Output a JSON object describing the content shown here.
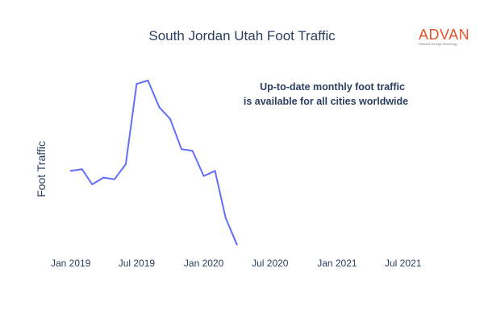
{
  "brand": {
    "name": "ADVAN",
    "tagline": "Research through Technology",
    "color": "#e8542a"
  },
  "annotation": {
    "line1": "Up-to-date monthly foot traffic",
    "line2": "is available for all cities worldwide"
  },
  "chart_data": {
    "type": "line",
    "title": "South Jordan Utah Foot Traffic",
    "xlabel": "",
    "ylabel": "Foot Traffic",
    "x_tick_labels": [
      "Jan 2019",
      "Jul 2019",
      "Jan 2020",
      "Jul 2020",
      "Jan 2021",
      "Jul 2021"
    ],
    "x_range": [
      "2018-12-15",
      "2021-08-15"
    ],
    "y_range": [
      0,
      100
    ],
    "y_ticks_shown": false,
    "grid": false,
    "legend": "none",
    "line_color": "#636efa",
    "series": [
      {
        "x": [
          "2019-01-01",
          "2019-02-01",
          "2019-03-01",
          "2019-04-01",
          "2019-05-01",
          "2019-06-01",
          "2019-07-01",
          "2019-08-01",
          "2019-09-01",
          "2019-10-01",
          "2019-11-01",
          "2019-12-01",
          "2020-01-01",
          "2020-02-01",
          "2020-03-01",
          "2020-04-01"
        ],
        "y": [
          46,
          47,
          38,
          42,
          41,
          50,
          98,
          100,
          84,
          77,
          59,
          58,
          43,
          46,
          18,
          2
        ]
      }
    ]
  }
}
